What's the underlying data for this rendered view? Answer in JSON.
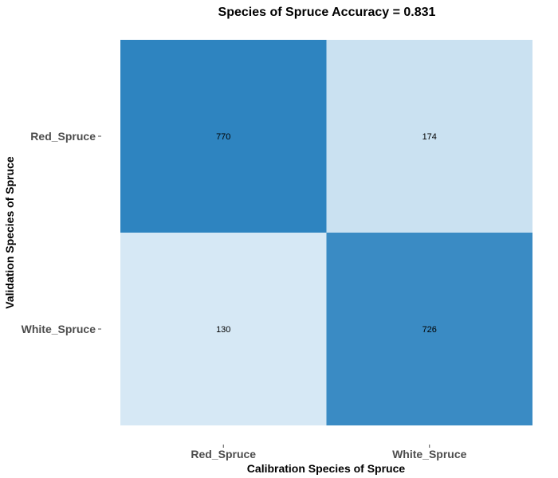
{
  "chart_data": {
    "type": "heatmap",
    "title": "Species of Spruce  Accuracy =  0.831",
    "xlabel": "Calibration  Species of Spruce",
    "ylabel": "Validation  Species of Spruce",
    "x_categories": [
      "Red_Spruce",
      "White_Spruce"
    ],
    "y_categories": [
      "Red_Spruce",
      "White_Spruce"
    ],
    "cells": [
      {
        "x": "Red_Spruce",
        "y": "Red_Spruce",
        "value": 770
      },
      {
        "x": "White_Spruce",
        "y": "Red_Spruce",
        "value": 174
      },
      {
        "x": "Red_Spruce",
        "y": "White_Spruce",
        "value": 130
      },
      {
        "x": "White_Spruce",
        "y": "White_Spruce",
        "value": 726
      }
    ],
    "color_scale": {
      "low": "#d6e8f5",
      "high": "#2e84c0"
    },
    "grid": false,
    "legend": "none"
  }
}
